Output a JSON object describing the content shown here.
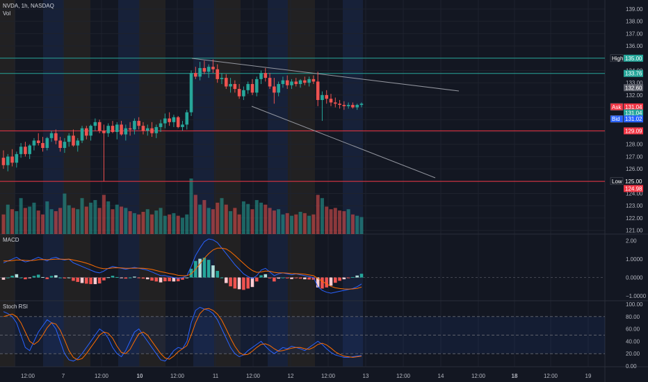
{
  "header": {
    "symbol_line": "NVDA, 1h, NASDAQ",
    "volume_label": "Vol"
  },
  "panes": {
    "macd_label": "MACD",
    "stoch_label": "Stoch RSI"
  },
  "colors": {
    "bg": "#131722",
    "up": "#26a69a",
    "down": "#ef5350",
    "grid": "#1e222d",
    "axis_text": "#b2b5be",
    "macd": "#2962ff",
    "signal": "#ff6d00",
    "session_blue": "#1c2a4d",
    "session_brown": "#2f2a22",
    "level_green": "#26a69a",
    "level_red": "#f23645"
  },
  "chart_data": {
    "type": "candlestick",
    "price_axis": {
      "min": 121.0,
      "max": 139.0,
      "ticks": [
        "139.00",
        "138.00",
        "137.00",
        "136.00",
        "135.00",
        "134.00",
        "133.00",
        "132.00",
        "131.00",
        "130.00",
        "129.00",
        "128.00",
        "127.00",
        "126.00",
        "125.00",
        "124.00",
        "123.00",
        "122.00",
        "121.00"
      ]
    },
    "x_ticks": [
      {
        "label": "12:00",
        "bold": false
      },
      {
        "label": "7",
        "bold": false
      },
      {
        "label": "12:00",
        "bold": false
      },
      {
        "label": "10",
        "bold": true
      },
      {
        "label": "12:00",
        "bold": false
      },
      {
        "label": "11",
        "bold": false
      },
      {
        "label": "12:00",
        "bold": false
      },
      {
        "label": "12",
        "bold": false
      },
      {
        "label": "12:00",
        "bold": false
      },
      {
        "label": "13",
        "bold": false
      },
      {
        "label": "12:00",
        "bold": false
      },
      {
        "label": "14",
        "bold": false
      },
      {
        "label": "12:00",
        "bold": false
      },
      {
        "label": "18",
        "bold": true
      },
      {
        "label": "12:00",
        "bold": false
      },
      {
        "label": "19",
        "bold": false
      }
    ],
    "ohlc": [
      [
        126.9,
        127.5,
        126.0,
        126.3
      ],
      [
        126.3,
        127.2,
        125.8,
        127.0
      ],
      [
        127.0,
        127.6,
        126.2,
        126.5
      ],
      [
        126.5,
        127.4,
        126.1,
        127.2
      ],
      [
        127.2,
        128.1,
        126.9,
        127.8
      ],
      [
        127.8,
        128.2,
        127.0,
        127.2
      ],
      [
        127.2,
        128.0,
        126.8,
        127.9
      ],
      [
        127.9,
        128.5,
        127.5,
        128.3
      ],
      [
        128.3,
        128.9,
        127.9,
        128.1
      ],
      [
        128.1,
        128.6,
        127.4,
        127.7
      ],
      [
        127.7,
        128.6,
        127.5,
        128.5
      ],
      [
        128.5,
        129.1,
        128.2,
        128.9
      ],
      [
        128.9,
        129.2,
        128.0,
        128.3
      ],
      [
        128.3,
        128.6,
        127.4,
        127.7
      ],
      [
        127.7,
        128.5,
        127.3,
        128.2
      ],
      [
        128.2,
        128.9,
        127.8,
        128.7
      ],
      [
        128.7,
        129.2,
        127.8,
        127.9
      ],
      [
        127.9,
        128.5,
        127.4,
        128.3
      ],
      [
        128.3,
        129.5,
        128.1,
        129.3
      ],
      [
        129.3,
        129.5,
        128.4,
        128.7
      ],
      [
        128.7,
        129.6,
        128.3,
        129.5
      ],
      [
        129.5,
        130.1,
        129.1,
        129.8
      ],
      [
        129.8,
        130.0,
        128.9,
        129.1
      ],
      [
        129.1,
        129.6,
        125.0,
        128.9
      ],
      [
        128.9,
        129.7,
        128.6,
        129.5
      ],
      [
        129.5,
        129.9,
        128.9,
        129.0
      ],
      [
        129.0,
        129.8,
        128.4,
        129.6
      ],
      [
        129.6,
        129.9,
        128.7,
        128.8
      ],
      [
        128.8,
        129.6,
        128.3,
        129.3
      ],
      [
        129.3,
        129.8,
        128.7,
        129.2
      ],
      [
        129.2,
        130.1,
        128.8,
        129.9
      ],
      [
        129.9,
        130.2,
        129.2,
        129.5
      ],
      [
        129.5,
        129.8,
        128.8,
        129.1
      ],
      [
        129.1,
        129.6,
        128.7,
        129.3
      ],
      [
        129.3,
        129.8,
        128.6,
        128.9
      ],
      [
        128.9,
        129.6,
        128.5,
        129.4
      ],
      [
        129.4,
        130.0,
        129.0,
        129.7
      ],
      [
        129.7,
        130.5,
        129.3,
        130.1
      ],
      [
        130.1,
        130.6,
        129.5,
        129.8
      ],
      [
        129.8,
        130.4,
        129.4,
        130.2
      ],
      [
        130.2,
        130.3,
        129.3,
        129.4
      ],
      [
        129.4,
        129.9,
        129.1,
        129.6
      ],
      [
        129.6,
        130.8,
        129.2,
        130.6
      ],
      [
        130.6,
        134.0,
        130.3,
        133.8
      ],
      [
        133.8,
        134.3,
        133.3,
        133.5
      ],
      [
        133.5,
        134.7,
        133.2,
        134.2
      ],
      [
        134.2,
        134.8,
        133.7,
        133.9
      ],
      [
        133.9,
        134.5,
        133.4,
        134.3
      ],
      [
        134.3,
        134.9,
        133.8,
        134.1
      ],
      [
        134.1,
        134.5,
        133.0,
        133.3
      ],
      [
        133.3,
        133.8,
        132.9,
        133.4
      ],
      [
        133.4,
        133.7,
        132.5,
        132.7
      ],
      [
        132.7,
        133.4,
        132.2,
        132.9
      ],
      [
        132.9,
        133.2,
        132.2,
        132.5
      ],
      [
        132.5,
        132.9,
        131.7,
        131.9
      ],
      [
        131.9,
        132.7,
        131.6,
        132.4
      ],
      [
        132.4,
        133.1,
        132.1,
        132.9
      ],
      [
        132.9,
        133.3,
        132.0,
        132.2
      ],
      [
        132.2,
        133.5,
        131.9,
        133.3
      ],
      [
        133.3,
        134.0,
        132.9,
        133.8
      ],
      [
        133.8,
        134.2,
        133.1,
        133.4
      ],
      [
        133.4,
        133.8,
        132.5,
        132.7
      ],
      [
        132.7,
        133.4,
        131.3,
        132.2
      ],
      [
        132.2,
        133.1,
        131.9,
        132.9
      ],
      [
        132.9,
        133.5,
        132.6,
        133.2
      ],
      [
        133.2,
        133.6,
        132.5,
        132.8
      ],
      [
        132.8,
        133.3,
        132.5,
        133.1
      ],
      [
        133.1,
        133.4,
        132.7,
        132.9
      ],
      [
        132.9,
        133.3,
        132.6,
        133.2
      ],
      [
        133.2,
        133.5,
        132.8,
        133.0
      ],
      [
        133.0,
        133.5,
        132.7,
        133.3
      ],
      [
        133.3,
        133.6,
        132.9,
        133.1
      ],
      [
        133.1,
        133.9,
        131.1,
        131.6
      ],
      [
        131.6,
        132.3,
        129.9,
        132.0
      ],
      [
        132.0,
        132.4,
        131.3,
        131.7
      ],
      [
        131.7,
        132.1,
        131.1,
        131.4
      ],
      [
        131.4,
        131.8,
        131.0,
        131.3
      ],
      [
        131.3,
        131.6,
        130.9,
        131.2
      ],
      [
        131.2,
        131.5,
        130.8,
        131.1
      ],
      [
        131.1,
        131.4,
        130.9,
        131.2
      ],
      [
        131.2,
        131.4,
        130.9,
        131.0
      ],
      [
        131.0,
        131.3,
        130.8,
        131.2
      ],
      [
        131.2,
        131.4,
        131.0,
        131.3
      ]
    ],
    "volume": [
      30,
      45,
      38,
      35,
      55,
      40,
      42,
      48,
      36,
      30,
      50,
      38,
      35,
      40,
      62,
      44,
      40,
      38,
      55,
      42,
      48,
      52,
      40,
      60,
      50,
      38,
      45,
      42,
      40,
      35,
      32,
      30,
      34,
      38,
      30,
      36,
      40,
      28,
      30,
      32,
      28,
      25,
      30,
      85,
      60,
      45,
      52,
      40,
      38,
      48,
      55,
      45,
      35,
      40,
      30,
      50,
      46,
      38,
      52,
      48,
      45,
      40,
      36,
      38,
      30,
      32,
      28,
      30,
      34,
      32,
      28,
      30,
      60,
      55,
      42,
      38,
      40,
      36,
      35,
      38,
      30,
      28,
      26
    ],
    "levels": [
      {
        "price": 135.0,
        "color": "#26a69a"
      },
      {
        "price": 133.76,
        "color": "#26a69a"
      },
      {
        "price": 129.09,
        "color": "#f23645"
      },
      {
        "price": 124.98,
        "color": "#f23645"
      }
    ],
    "price_tags": [
      {
        "label": "High",
        "value": "135.00",
        "price": 135.0,
        "bg": "#26a69a",
        "labelbg": "#131722"
      },
      {
        "label": "",
        "value": "133.76",
        "price": 133.76,
        "bg": "#26a69a",
        "labelbg": ""
      },
      {
        "label": "",
        "value": "132.60",
        "price": 132.6,
        "bg": "#5d606b",
        "labelbg": ""
      },
      {
        "label": "Ask",
        "value": "131.04",
        "price": 131.04,
        "bg": "#f23645",
        "labelbg": "#f23645"
      },
      {
        "label": "",
        "value": "131.04",
        "price": 130.55,
        "bg": "#26a69a",
        "labelbg": ""
      },
      {
        "label": "Bid",
        "value": "131.02",
        "price": 130.06,
        "bg": "#2962ff",
        "labelbg": "#2962ff"
      },
      {
        "label": "",
        "value": "129.09",
        "price": 129.09,
        "bg": "#f23645",
        "labelbg": ""
      },
      {
        "label": "Low",
        "value": "125.00",
        "price": 125.0,
        "bg": "#131722",
        "labelbg": "#131722"
      },
      {
        "label": "",
        "value": "124.98",
        "price": 124.4,
        "bg": "#f23645",
        "labelbg": ""
      }
    ],
    "macd": {
      "ticks": [
        "2.00",
        "1.0000",
        "0.0000",
        "−1.0000"
      ],
      "range": [
        -1.15,
        2.25
      ],
      "macd": [
        0.8,
        0.9,
        1.0,
        1.1,
        0.95,
        0.85,
        0.9,
        1.0,
        1.1,
        1.0,
        0.9,
        1.05,
        1.1,
        1.0,
        0.95,
        1.0,
        0.8,
        0.7,
        0.6,
        0.5,
        0.4,
        0.3,
        0.25,
        0.35,
        0.5,
        0.6,
        0.55,
        0.5,
        0.45,
        0.5,
        0.55,
        0.5,
        0.45,
        0.4,
        0.3,
        0.2,
        0.1,
        0.1,
        0.05,
        0.0,
        -0.05,
        0.0,
        0.1,
        0.6,
        1.2,
        1.6,
        1.95,
        2.1,
        2.05,
        1.9,
        1.6,
        1.3,
        1.0,
        0.7,
        0.45,
        0.2,
        0.05,
        -0.05,
        0.1,
        0.4,
        0.5,
        0.3,
        0.1,
        0.2,
        0.25,
        0.2,
        0.15,
        0.2,
        0.15,
        0.1,
        0.05,
        0.0,
        -0.5,
        -0.7,
        -0.8,
        -0.85,
        -0.8,
        -0.75,
        -0.7,
        -0.65,
        -0.6,
        -0.5,
        -0.35
      ],
      "signal": [
        0.9,
        0.9,
        0.92,
        0.95,
        0.95,
        0.93,
        0.92,
        0.93,
        0.97,
        0.98,
        0.97,
        0.98,
        1.0,
        1.0,
        0.99,
        1.0,
        0.95,
        0.9,
        0.85,
        0.78,
        0.7,
        0.6,
        0.52,
        0.48,
        0.49,
        0.52,
        0.53,
        0.52,
        0.5,
        0.5,
        0.51,
        0.51,
        0.5,
        0.48,
        0.44,
        0.38,
        0.32,
        0.27,
        0.22,
        0.18,
        0.12,
        0.1,
        0.1,
        0.2,
        0.45,
        0.75,
        1.05,
        1.3,
        1.5,
        1.6,
        1.6,
        1.55,
        1.4,
        1.2,
        0.98,
        0.76,
        0.55,
        0.38,
        0.28,
        0.3,
        0.35,
        0.34,
        0.28,
        0.25,
        0.25,
        0.24,
        0.22,
        0.21,
        0.2,
        0.18,
        0.14,
        0.1,
        -0.05,
        -0.2,
        -0.35,
        -0.48,
        -0.56,
        -0.6,
        -0.62,
        -0.63,
        -0.62,
        -0.59,
        -0.52
      ]
    },
    "stoch": {
      "ticks": [
        "100.00",
        "80.00",
        "60.00",
        "40.00",
        "20.00",
        "0.00"
      ],
      "k": [
        88,
        85,
        80,
        70,
        50,
        30,
        25,
        40,
        55,
        65,
        75,
        70,
        60,
        40,
        20,
        10,
        8,
        12,
        20,
        30,
        40,
        50,
        60,
        55,
        45,
        30,
        20,
        15,
        25,
        40,
        55,
        60,
        50,
        40,
        30,
        20,
        10,
        8,
        15,
        25,
        30,
        28,
        40,
        70,
        90,
        95,
        92,
        90,
        85,
        75,
        60,
        45,
        30,
        20,
        15,
        18,
        25,
        30,
        35,
        40,
        32,
        25,
        20,
        25,
        30,
        28,
        32,
        30,
        28,
        25,
        30,
        35,
        40,
        35,
        28,
        22,
        18,
        16,
        14,
        14,
        15,
        16,
        17
      ],
      "d": [
        80,
        82,
        84,
        80,
        70,
        55,
        40,
        35,
        40,
        50,
        62,
        70,
        68,
        58,
        42,
        25,
        14,
        10,
        12,
        20,
        30,
        40,
        50,
        55,
        53,
        45,
        32,
        22,
        20,
        27,
        40,
        52,
        55,
        50,
        40,
        30,
        20,
        13,
        11,
        16,
        23,
        28,
        33,
        50,
        70,
        85,
        92,
        93,
        90,
        84,
        74,
        60,
        45,
        32,
        22,
        18,
        19,
        24,
        30,
        35,
        36,
        33,
        28,
        24,
        25,
        27,
        29,
        30,
        30,
        28,
        27,
        30,
        35,
        37,
        34,
        29,
        23,
        19,
        16,
        15,
        14,
        15,
        16
      ]
    }
  }
}
